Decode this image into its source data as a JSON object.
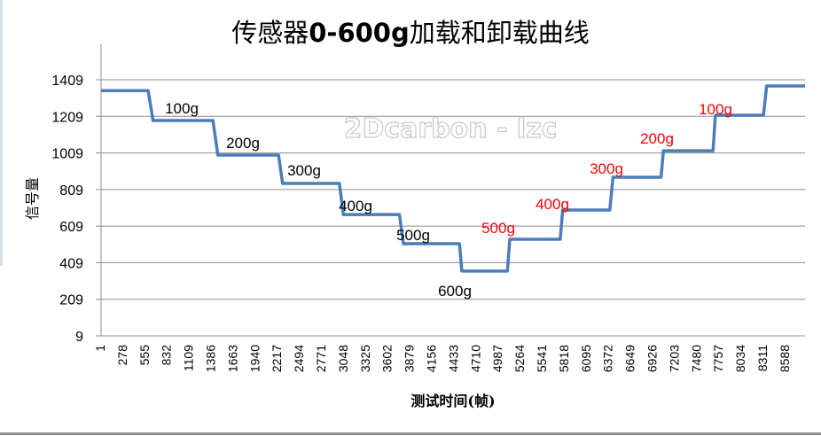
{
  "chart_data": {
    "type": "line",
    "title": "传感器0-600g加载和卸载曲线",
    "xlabel": "测试时间(帧)",
    "ylabel": "信号量",
    "ylim": [
      9,
      1409
    ],
    "yticks": [
      9,
      209,
      409,
      609,
      809,
      1009,
      1209,
      1409
    ],
    "xticks": [
      1,
      278,
      555,
      832,
      1109,
      1386,
      1663,
      1940,
      2217,
      2494,
      2771,
      3048,
      3325,
      3602,
      3879,
      4156,
      4433,
      4710,
      4987,
      5264,
      5541,
      5818,
      6095,
      6372,
      6649,
      6926,
      7203,
      7480,
      7757,
      8034,
      8311,
      8588
    ],
    "xlim": [
      1,
      8800
    ],
    "grid": true,
    "legend": "none",
    "watermark": "2Dcarbon - lzc",
    "series": [
      {
        "name": "信号量",
        "color": "#4a7ebb",
        "x": [
          1,
          590,
          650,
          1400,
          1460,
          2220,
          2270,
          2980,
          3030,
          3730,
          3780,
          4480,
          4510,
          5080,
          5110,
          5740,
          5770,
          6360,
          6400,
          7000,
          7030,
          7650,
          7680,
          8280,
          8320,
          8800
        ],
        "y": [
          1350,
          1350,
          1186,
          1186,
          997,
          997,
          842,
          842,
          672,
          672,
          513,
          513,
          363,
          363,
          537,
          537,
          697,
          697,
          876,
          876,
          1021,
          1021,
          1215,
          1215,
          1375,
          1375
        ]
      }
    ],
    "annotations": [
      {
        "text": "100g",
        "phase": "loading",
        "color": "#000000",
        "x": 205,
        "y": 128
      },
      {
        "text": "200g",
        "phase": "loading",
        "color": "#000000",
        "x": 274,
        "y": 167
      },
      {
        "text": "300g",
        "phase": "loading",
        "color": "#000000",
        "x": 343,
        "y": 198
      },
      {
        "text": "400g",
        "phase": "loading",
        "color": "#000000",
        "x": 401,
        "y": 238
      },
      {
        "text": "500g",
        "phase": "loading",
        "color": "#000000",
        "x": 466,
        "y": 271
      },
      {
        "text": "600g",
        "phase": "loading",
        "color": "#000000",
        "x": 513,
        "y": 334
      },
      {
        "text": "500g",
        "phase": "unloading",
        "color": "#ff0000",
        "x": 562,
        "y": 263
      },
      {
        "text": "400g",
        "phase": "unloading",
        "color": "#ff0000",
        "x": 623,
        "y": 236
      },
      {
        "text": "300g",
        "phase": "unloading",
        "color": "#ff0000",
        "x": 684,
        "y": 196
      },
      {
        "text": "200g",
        "phase": "unloading",
        "color": "#ff0000",
        "x": 741,
        "y": 162
      },
      {
        "text": "100g",
        "phase": "unloading",
        "color": "#ff0000",
        "x": 807,
        "y": 129
      }
    ]
  },
  "ui": {
    "title_prefix": "传感器",
    "title_bold": "0-600g",
    "title_suffix": "加载和卸载曲线",
    "colors": {
      "line": "#4a7ebb",
      "grid": "#8c8c8c",
      "loading_label": "#000000",
      "unloading_label": "#ff0000"
    }
  }
}
